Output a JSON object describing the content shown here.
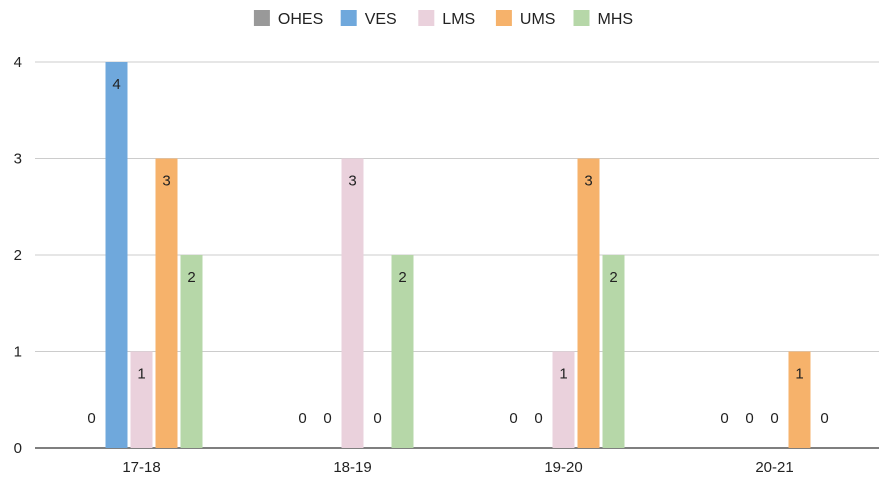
{
  "chart_data": {
    "type": "bar",
    "categories": [
      "17-18",
      "18-19",
      "19-20",
      "20-21"
    ],
    "series": [
      {
        "name": "OHES",
        "color": "#999999",
        "values": [
          0,
          0,
          0,
          0
        ]
      },
      {
        "name": "VES",
        "color": "#6fa8dc",
        "values": [
          4,
          0,
          0,
          0
        ]
      },
      {
        "name": "LMS",
        "color": "#ead1dc",
        "values": [
          1,
          3,
          1,
          0
        ]
      },
      {
        "name": "UMS",
        "color": "#f6b26b",
        "values": [
          3,
          0,
          3,
          1
        ]
      },
      {
        "name": "MHS",
        "color": "#b6d7a8",
        "values": [
          2,
          2,
          2,
          0
        ]
      }
    ],
    "ylim": [
      0,
      4
    ],
    "yticks": [
      0,
      1,
      2,
      3,
      4
    ],
    "grid": true,
    "legend": "top",
    "data_labels": true
  }
}
